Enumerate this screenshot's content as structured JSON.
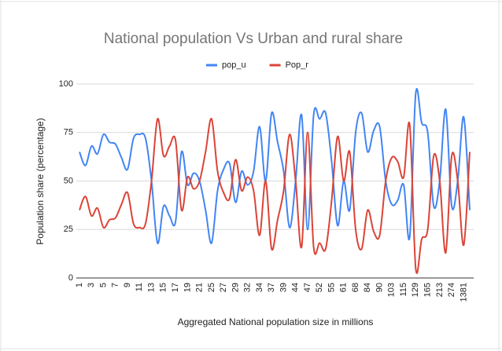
{
  "chart_data": {
    "type": "line",
    "title": "National population Vs Urban and rural share",
    "x_label": "Aggregated National population size in millions",
    "y_label": "Population share (percentage)",
    "categories": [
      "1",
      null,
      "3",
      null,
      "5",
      null,
      "7",
      null,
      "9",
      null,
      "11",
      null,
      "13",
      null,
      "15",
      null,
      "17",
      null,
      "19",
      null,
      "21",
      null,
      "25",
      null,
      "27",
      null,
      "29",
      null,
      "32",
      null,
      "34",
      null,
      "37",
      null,
      "39",
      null,
      "44",
      null,
      "47",
      null,
      "52",
      null,
      "55",
      null,
      "61",
      null,
      "68",
      null,
      "84",
      null,
      "90",
      null,
      "103",
      null,
      "115",
      null,
      "129",
      null,
      "165",
      null,
      "213",
      null,
      "274",
      null,
      "1381",
      null
    ],
    "series": [
      {
        "name": "pop_u",
        "color": "#4285f4",
        "values": [
          65,
          58,
          68,
          64,
          74,
          70,
          69,
          62,
          56,
          72,
          74,
          72,
          50,
          18,
          37,
          32,
          29,
          65,
          48,
          54,
          50,
          35,
          18,
          45,
          56,
          59,
          39,
          55,
          48,
          55,
          78,
          50,
          85,
          70,
          55,
          26,
          50,
          84,
          25,
          84,
          82,
          85,
          60,
          27,
          50,
          35,
          75,
          85,
          65,
          76,
          78,
          50,
          38,
          40,
          48,
          21,
          95,
          80,
          75,
          37,
          50,
          87,
          37,
          50,
          83,
          35
        ]
      },
      {
        "name": "Pop_r",
        "color": "#db4437",
        "values": [
          35,
          42,
          32,
          36,
          26,
          30,
          31,
          38,
          44,
          28,
          26,
          28,
          50,
          82,
          63,
          68,
          71,
          35,
          52,
          46,
          50,
          65,
          82,
          55,
          44,
          41,
          61,
          45,
          52,
          45,
          22,
          50,
          15,
          30,
          45,
          74,
          50,
          16,
          75,
          16,
          18,
          15,
          40,
          73,
          50,
          65,
          25,
          15,
          35,
          24,
          22,
          50,
          62,
          60,
          52,
          79,
          5,
          20,
          25,
          63,
          50,
          13,
          63,
          50,
          17,
          65
        ]
      }
    ],
    "ylim": [
      0,
      100
    ],
    "yticks": [
      0,
      25,
      50,
      75,
      100
    ],
    "grid": true,
    "legend": "top"
  }
}
